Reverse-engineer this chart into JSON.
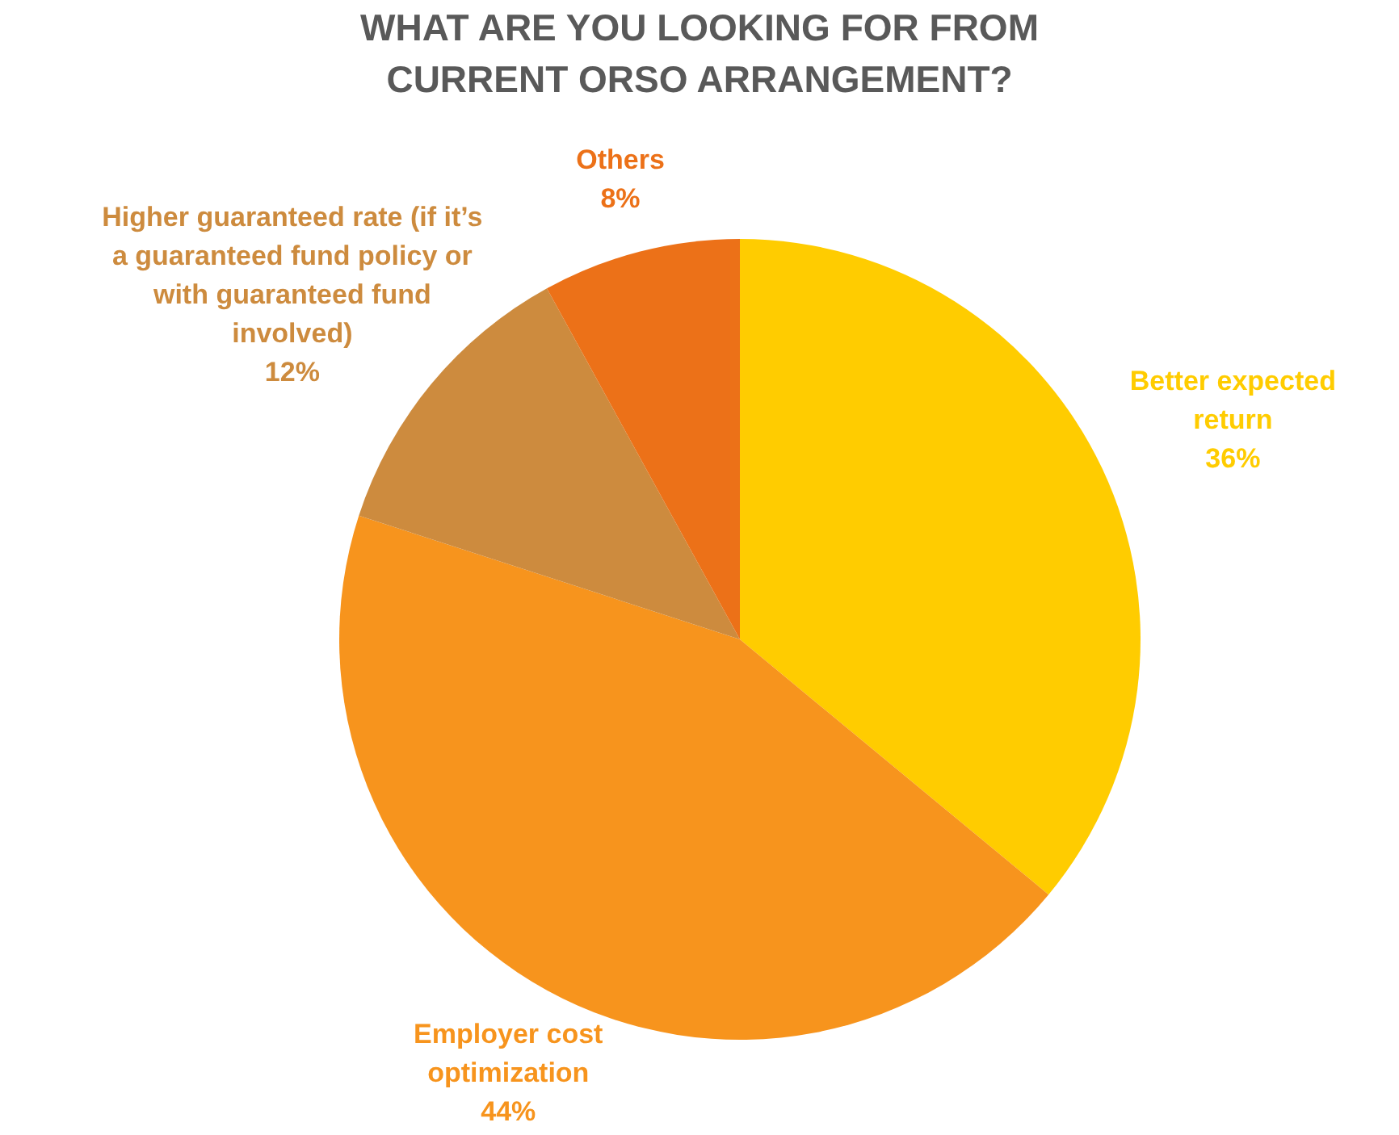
{
  "chart_data": {
    "type": "pie",
    "title": [
      "WHAT ARE YOU LOOKING FOR FROM",
      "CURRENT ORSO ARRANGEMENT?"
    ],
    "categories": [
      "Better expected\nreturn",
      "Employer cost\noptimization",
      "Higher guaranteed rate (if it’s\na guaranteed fund policy or\nwith guaranteed fund\ninvolved)",
      "Others"
    ],
    "values": [
      36,
      44,
      12,
      8
    ],
    "value_labels": [
      "36%",
      "44%",
      "12%",
      "8%"
    ],
    "colors": [
      "#ffcc00",
      "#f7941d",
      "#cd8b3e",
      "#ec7118"
    ]
  }
}
